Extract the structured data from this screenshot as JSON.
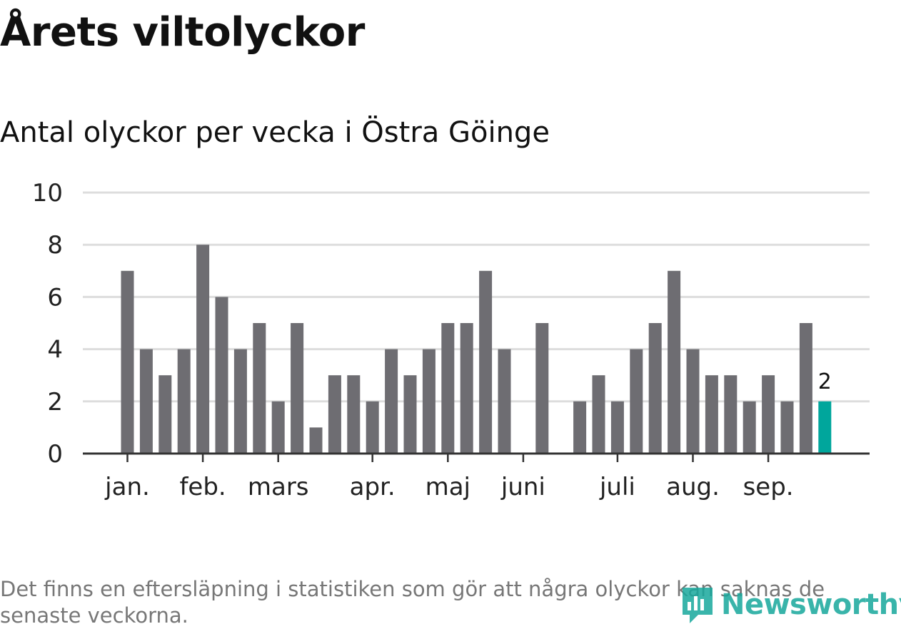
{
  "title": "Årets viltolyckor",
  "subtitle": "Antal olyckor per vecka i Östra Göinge",
  "footnote": "Det finns en eftersläpning i statistiken som gör att några olyckor kan saknas de senaste veckorna.",
  "logo": {
    "text": "Newsworthy",
    "icon": "newsworthy-chart-icon",
    "color": "#17a89c"
  },
  "colors": {
    "bar": "#6e6d72",
    "highlight": "#00a69c",
    "grid": "#dddddd",
    "axis": "#333333",
    "text": "#222222"
  },
  "chart_data": {
    "type": "bar",
    "x_unit": "week",
    "weeks": [
      1,
      2,
      3,
      4,
      5,
      6,
      7,
      8,
      9,
      10,
      11,
      12,
      13,
      14,
      15,
      16,
      17,
      18,
      19,
      20,
      21,
      22,
      23,
      24,
      25,
      26,
      27,
      28,
      29,
      30,
      31,
      32,
      33,
      34,
      35,
      36,
      37,
      38
    ],
    "values": [
      7,
      4,
      3,
      4,
      8,
      6,
      4,
      5,
      2,
      5,
      1,
      3,
      3,
      2,
      4,
      3,
      4,
      5,
      5,
      7,
      4,
      0,
      5,
      0,
      2,
      3,
      2,
      4,
      5,
      7,
      4,
      3,
      3,
      2,
      3,
      2,
      5,
      2
    ],
    "highlight_index": 37,
    "highlight_label": "2",
    "ylim": [
      0,
      10
    ],
    "yticks": [
      0,
      2,
      4,
      6,
      8,
      10
    ],
    "month_ticks": [
      {
        "label": "jan.",
        "week": 1
      },
      {
        "label": "feb.",
        "week": 5
      },
      {
        "label": "mars",
        "week": 9
      },
      {
        "label": "apr.",
        "week": 14
      },
      {
        "label": "maj",
        "week": 18
      },
      {
        "label": "juni",
        "week": 22
      },
      {
        "label": "juli",
        "week": 27
      },
      {
        "label": "aug.",
        "week": 31
      },
      {
        "label": "sep.",
        "week": 35
      }
    ],
    "grid": true,
    "legend": "none"
  }
}
